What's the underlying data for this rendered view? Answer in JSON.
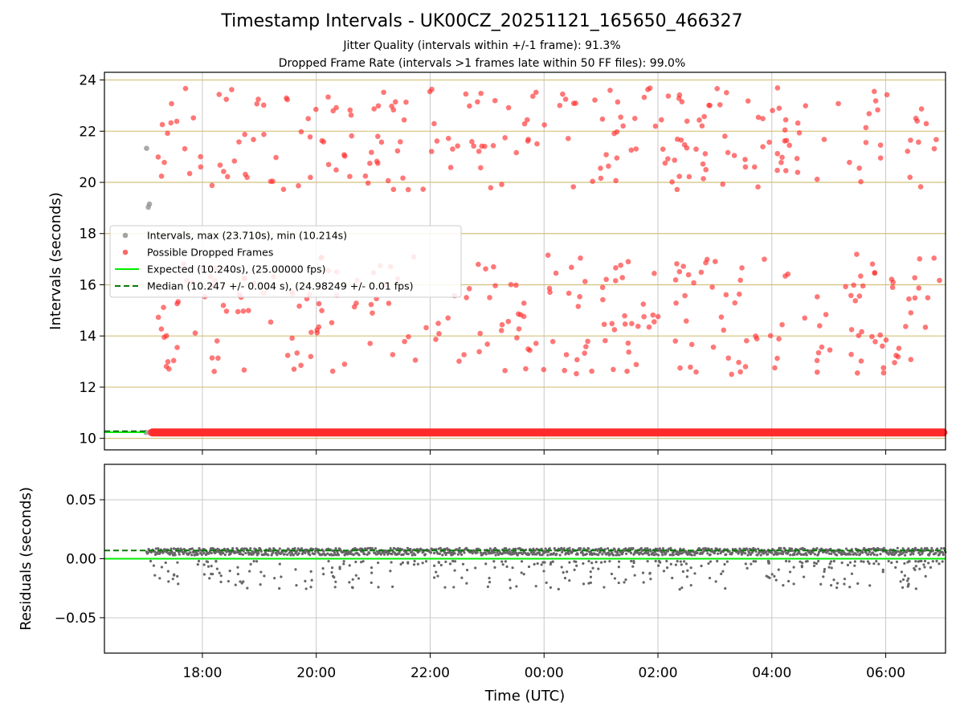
{
  "header": {
    "title": "Timestamp Intervals - UK00CZ_20251121_165650_466327",
    "subtitle_jitter": "Jitter Quality (intervals within +/-1 frame): 91.3%",
    "subtitle_dropped": "Dropped Frame Rate (intervals >1 frames late within 50 FF files): 99.0%"
  },
  "chart_data": [
    {
      "type": "scatter",
      "panel": "intervals",
      "ylabel": "Intervals (seconds)",
      "ylim": [
        9.55,
        24.3
      ],
      "yticks": [
        10,
        12,
        14,
        16,
        18,
        20,
        22,
        24
      ],
      "ytick_labels": [
        "10",
        "12",
        "14",
        "16",
        "18",
        "20",
        "22",
        "24"
      ],
      "xlim_hours": [
        16.28,
        31.05
      ],
      "xticks_hours": [
        18,
        20,
        22,
        24,
        26,
        28,
        30
      ],
      "xtick_labels": [
        "18:00",
        "20:00",
        "22:00",
        "00:00",
        "02:00",
        "04:00",
        "06:00"
      ],
      "grid": "on",
      "legend_position": "center-left",
      "legend": [
        {
          "label": "Intervals, max (23.710s), min (10.214s)",
          "marker": "grey-dot"
        },
        {
          "label": "Possible Dropped Frames",
          "marker": "red-dot"
        },
        {
          "label": "Expected (10.240s), (25.00000 fps)",
          "marker": "lime-line"
        },
        {
          "label": "Median (10.247 +/- 0.004 s), (24.98249 +/- 0.01 fps)",
          "marker": "green-dashed"
        }
      ],
      "expected_interval": 10.24,
      "median_interval": 10.247,
      "max_interval": 23.71,
      "min_interval": 10.214,
      "grey_points": [
        {
          "x": 17.02,
          "y": 21.33
        },
        {
          "x": 17.05,
          "y": 19.03
        },
        {
          "x": 17.07,
          "y": 19.15
        },
        {
          "x": 17.01,
          "y": 10.23
        }
      ],
      "dropped_points_band_level": 10.23,
      "dropped_points_band_range_hours": [
        17.1,
        31.05
      ],
      "dropped_clusters": {
        "upper": {
          "x_range": [
            17.1,
            30.95
          ],
          "y_range": [
            19.7,
            23.7
          ],
          "approx_count": 230
        },
        "lower": {
          "x_range": [
            17.2,
            31.0
          ],
          "y_range": [
            12.5,
            17.2
          ],
          "approx_count": 260
        }
      },
      "colors": {
        "grey": "#8c8c8c",
        "red": "#ff2a2a",
        "expected": "#00ee00",
        "median": "#0a7a0a",
        "hgrid": "#d4c07a",
        "vgrid": "#c8c8c8"
      }
    },
    {
      "type": "scatter",
      "panel": "residuals",
      "ylabel": "Residuals (seconds)",
      "xlabel": "Time (UTC)",
      "ylim": [
        -0.08,
        0.08
      ],
      "yticks": [
        -0.05,
        0.0,
        0.05
      ],
      "ytick_labels": [
        "−0.05",
        "0.00",
        "0.05"
      ],
      "expected_residual": 0.0,
      "median_residual": 0.007,
      "residual_main_band": [
        0.003,
        0.009
      ],
      "residual_outlier_range": [
        -0.026,
        -0.002
      ],
      "grid": "on"
    }
  ]
}
